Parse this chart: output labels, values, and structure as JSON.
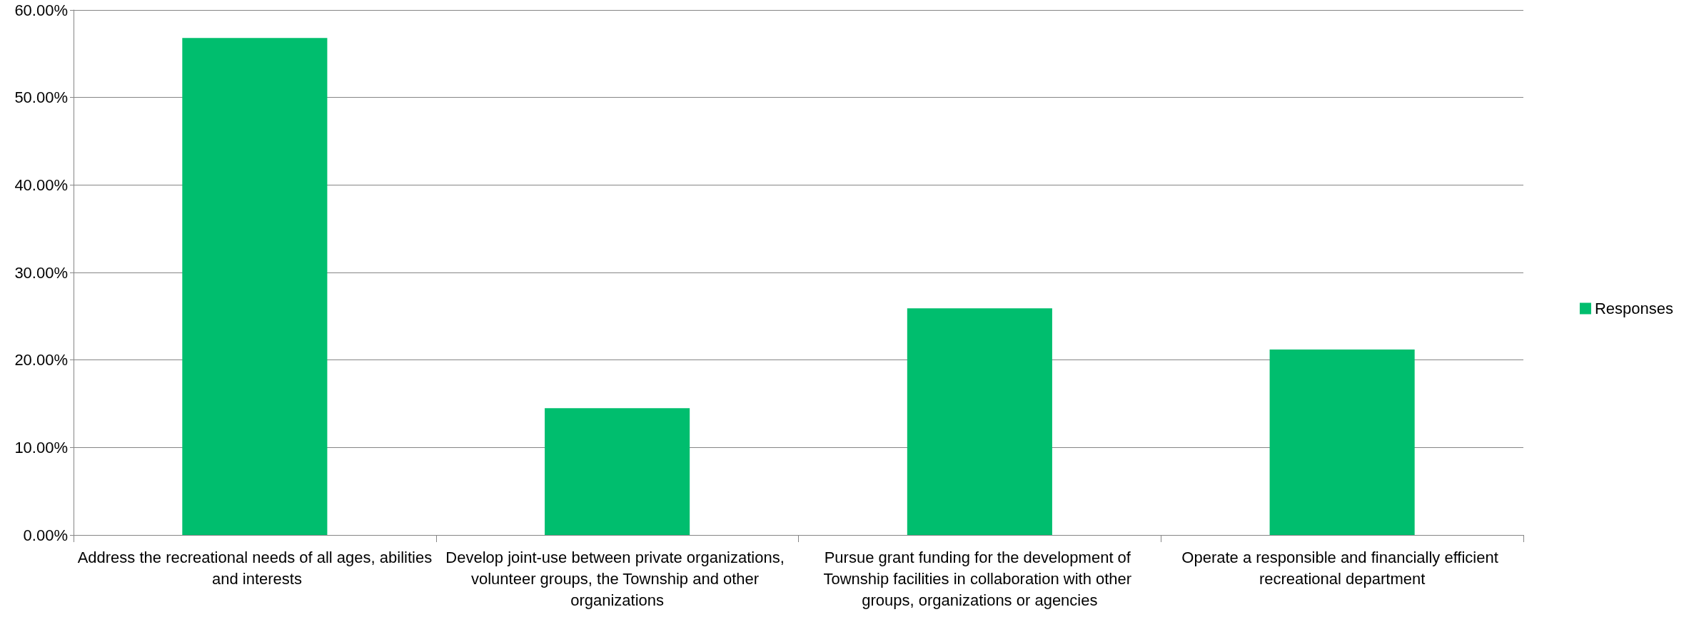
{
  "chart_data": {
    "type": "bar",
    "categories": [
      "Address the recreational needs of all ages, abilities and interests",
      "Develop joint-use between private organizations, volunteer groups, the Township and other organizations",
      "Pursue grant funding for the development of Township facilities in collaboration with other groups, organizations or agencies",
      "Operate a responsible and financially efficient recreational department"
    ],
    "series": [
      {
        "name": "Responses",
        "color": "#00be6e",
        "values": [
          56.8,
          14.5,
          25.9,
          21.2
        ]
      }
    ],
    "ylim": [
      0,
      60
    ],
    "yticks": [
      {
        "value": 0,
        "label": "0.00%"
      },
      {
        "value": 10,
        "label": "10.00%"
      },
      {
        "value": 20,
        "label": "20.00%"
      },
      {
        "value": 30,
        "label": "30.00%"
      },
      {
        "value": 40,
        "label": "40.00%"
      },
      {
        "value": 50,
        "label": "50.00%"
      },
      {
        "value": 60,
        "label": "60.00%"
      }
    ],
    "grid": "y",
    "legend": "right"
  }
}
